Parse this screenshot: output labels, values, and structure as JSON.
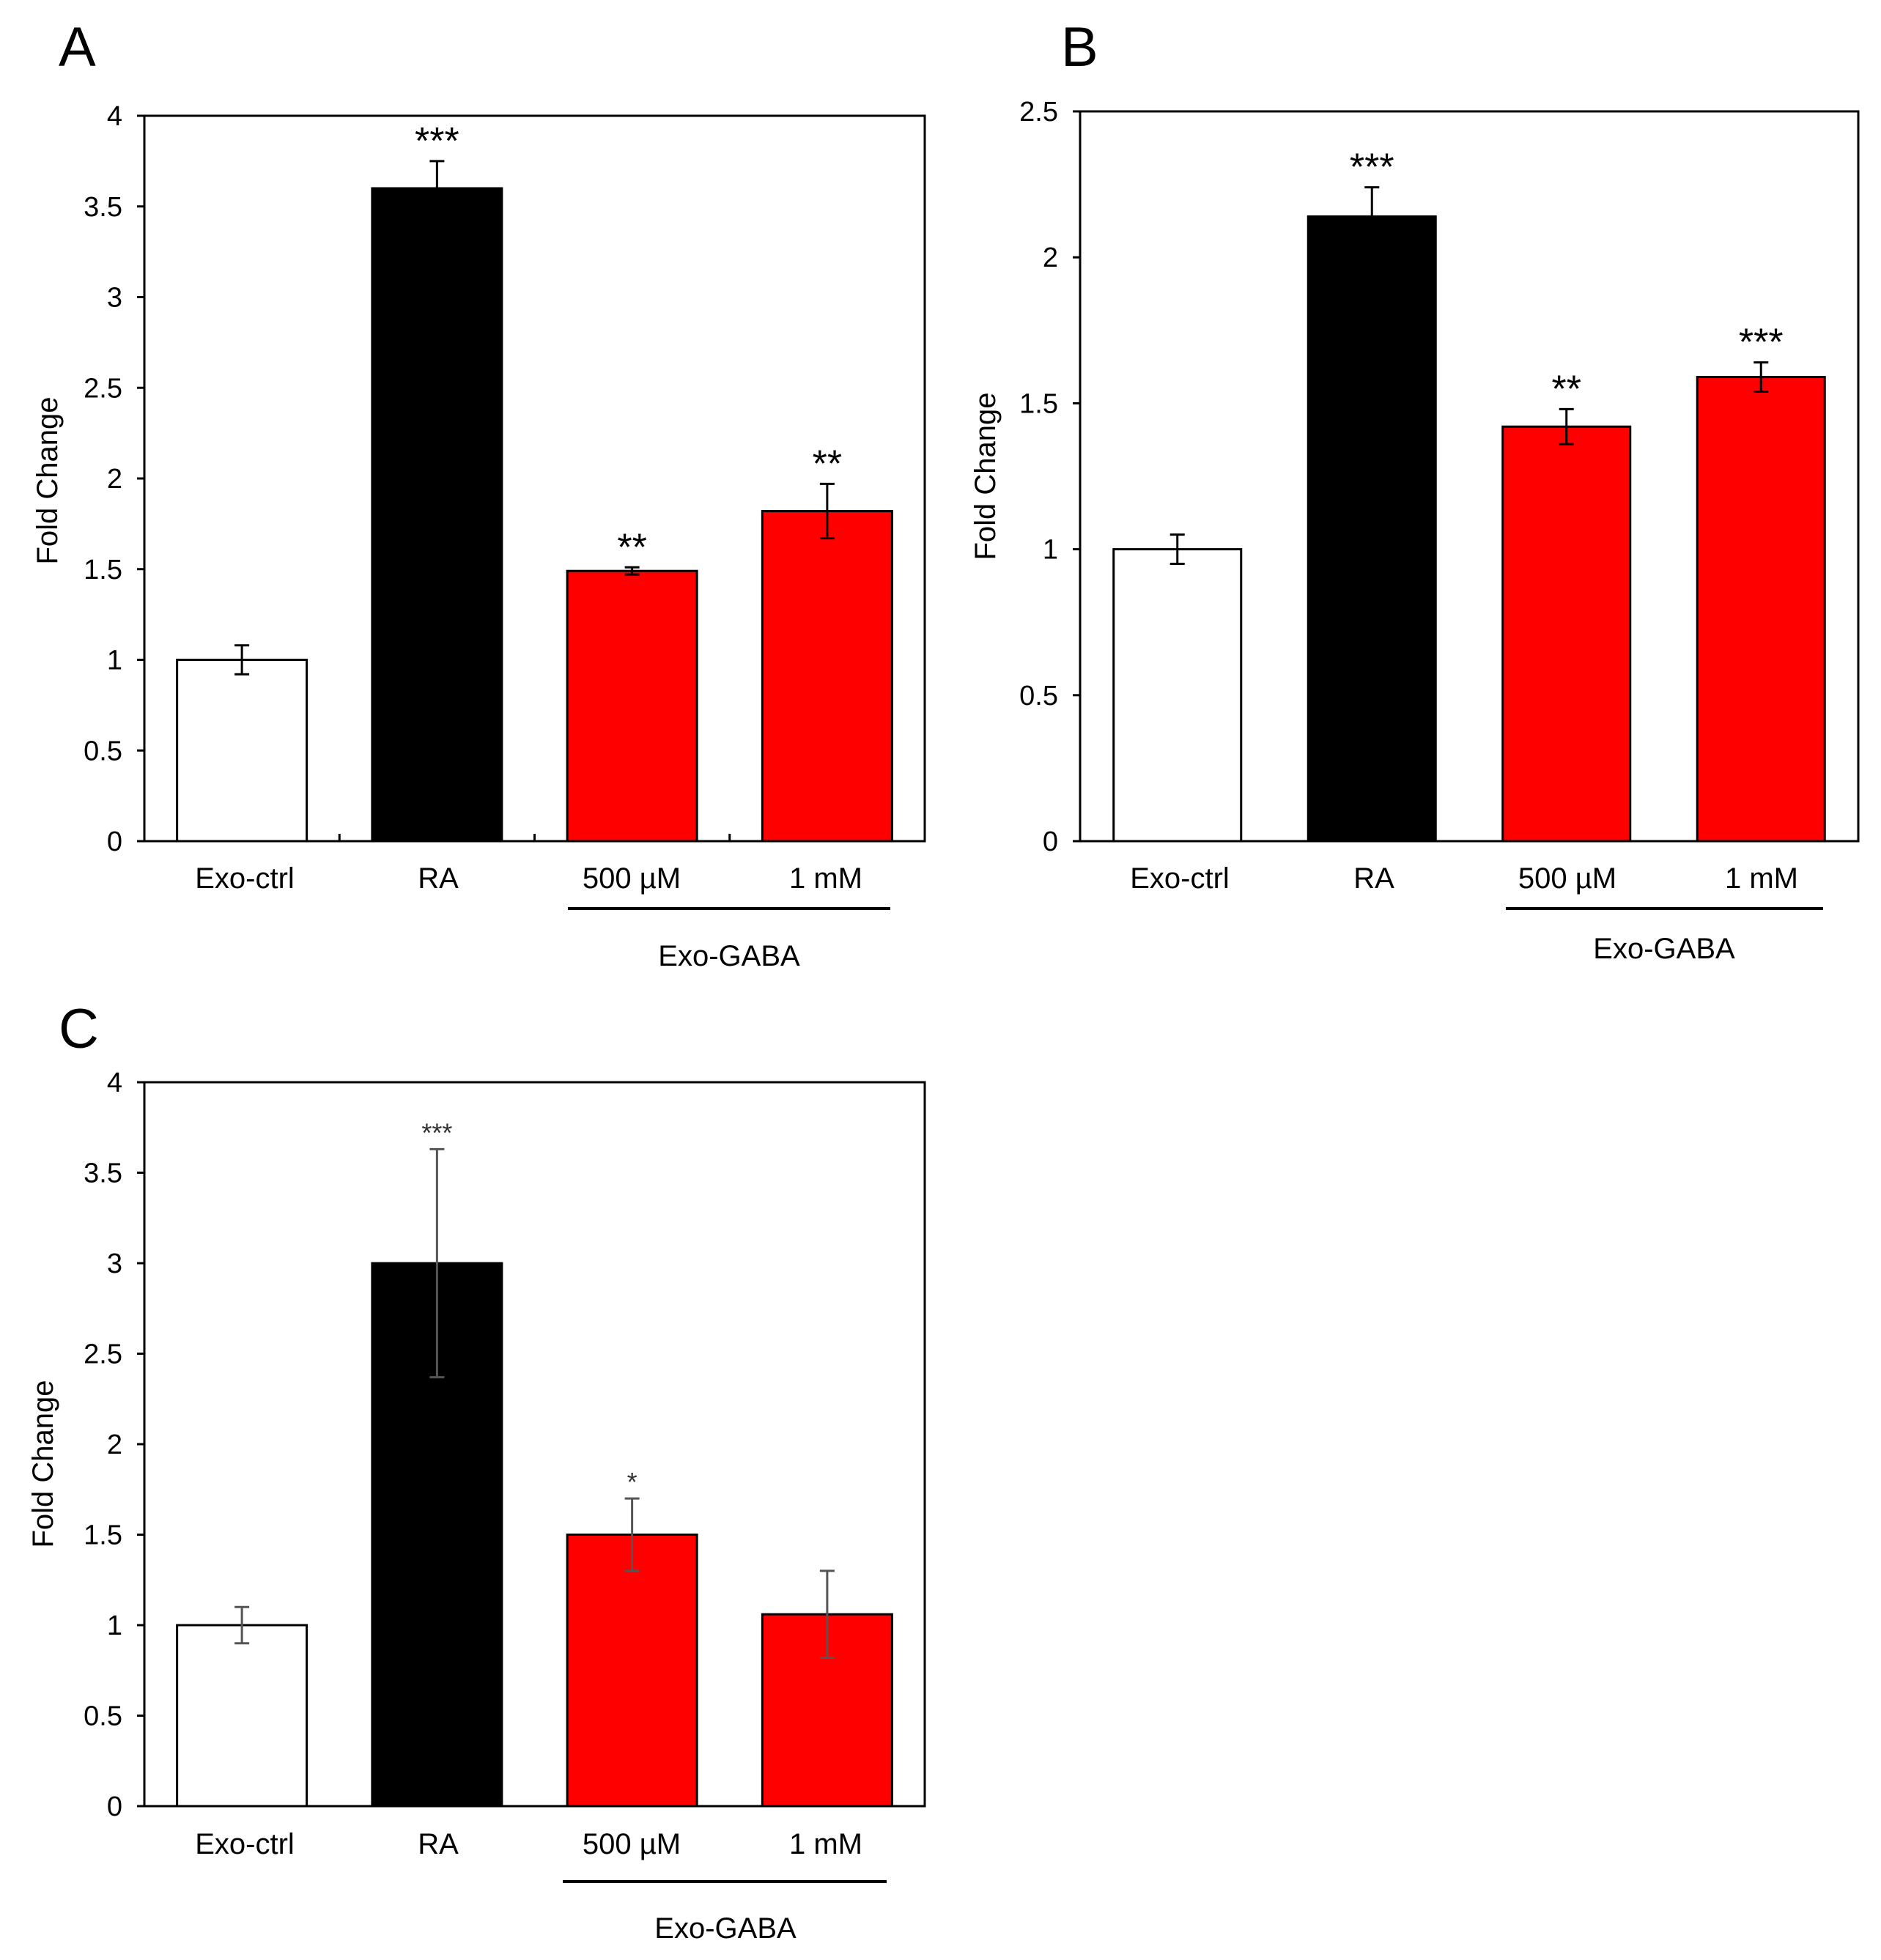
{
  "figure": {
    "colors": {
      "control": "#ffffff",
      "ra": "#000000",
      "gaba": "#ff0000",
      "axis": "#000000"
    }
  },
  "chart_data": [
    {
      "panel_label": "A",
      "type": "bar",
      "categories": [
        "Exo-ctrl",
        "RA",
        "500 µM",
        "1 mM"
      ],
      "values": [
        1.0,
        3.6,
        1.49,
        1.82
      ],
      "errors": [
        0.08,
        0.15,
        0.02,
        0.15
      ],
      "significance": [
        "",
        "***",
        "**",
        "**"
      ],
      "group_label": "Exo-GABA",
      "ylabel": "Fold Change",
      "ylim": [
        0,
        4
      ],
      "yticks": [
        "0",
        "0.5",
        "1",
        "1.5",
        "2",
        "2.5",
        "3",
        "3.5",
        "4"
      ],
      "bar_colors": [
        "#ffffff",
        "#000000",
        "#ff0000",
        "#ff0000"
      ]
    },
    {
      "panel_label": "B",
      "type": "bar",
      "categories": [
        "Exo-ctrl",
        "RA",
        "500 µM",
        "1 mM"
      ],
      "values": [
        1.0,
        2.14,
        1.42,
        1.59
      ],
      "errors": [
        0.05,
        0.1,
        0.06,
        0.05
      ],
      "significance": [
        "",
        "***",
        "**",
        "***"
      ],
      "group_label": "Exo-GABA",
      "ylabel": "Fold Change",
      "ylim": [
        0,
        2.5
      ],
      "yticks": [
        "0",
        "0.5",
        "1",
        "1.5",
        "2",
        "2.5"
      ],
      "bar_colors": [
        "#ffffff",
        "#000000",
        "#ff0000",
        "#ff0000"
      ]
    },
    {
      "panel_label": "C",
      "type": "bar",
      "categories": [
        "Exo-ctrl",
        "RA",
        "500 µM",
        "1 mM"
      ],
      "values": [
        1.0,
        3.0,
        1.5,
        1.06
      ],
      "errors": [
        0.1,
        0.63,
        0.2,
        0.24
      ],
      "significance": [
        "",
        "***",
        "*",
        ""
      ],
      "group_label": "Exo-GABA",
      "ylabel": "Fold Change",
      "ylim": [
        0,
        4
      ],
      "yticks": [
        "0",
        "0.5",
        "1",
        "1.5",
        "2",
        "2.5",
        "3",
        "3.5",
        "4"
      ],
      "bar_colors": [
        "#ffffff",
        "#000000",
        "#ff0000",
        "#ff0000"
      ]
    }
  ]
}
